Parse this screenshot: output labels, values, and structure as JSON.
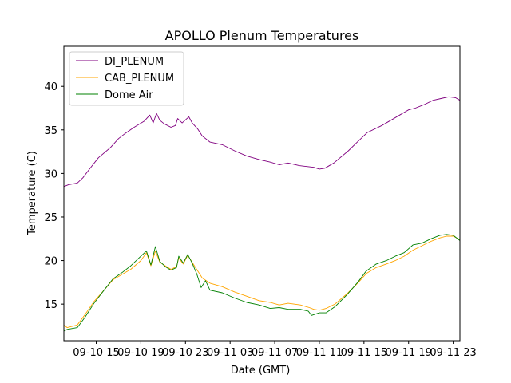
{
  "chart_data": {
    "type": "line",
    "title": "APOLLO Plenum Temperatures",
    "xlabel": "Date (GMT)",
    "ylabel": "Temperature (C)",
    "xlim": [
      12.1,
      47.6
    ],
    "ylim": [
      10.8,
      44.6
    ],
    "grid": false,
    "legend_position": "top-left",
    "x_unit": "hours since 2016-09-10 00:00 GMT",
    "x_ticks": [
      {
        "value": 15,
        "label": "09-10 15"
      },
      {
        "value": 19,
        "label": "09-10 19"
      },
      {
        "value": 23,
        "label": "09-10 23"
      },
      {
        "value": 27,
        "label": "09-11 03"
      },
      {
        "value": 31,
        "label": "09-11 07"
      },
      {
        "value": 35,
        "label": "09-11 11"
      },
      {
        "value": 39,
        "label": "09-11 15"
      },
      {
        "value": 43,
        "label": "09-11 19"
      },
      {
        "value": 47,
        "label": "09-11 23"
      }
    ],
    "y_ticks": [
      {
        "value": 15,
        "label": "15"
      },
      {
        "value": 20,
        "label": "20"
      },
      {
        "value": 25,
        "label": "25"
      },
      {
        "value": 30,
        "label": "30"
      },
      {
        "value": 35,
        "label": "35"
      },
      {
        "value": 40,
        "label": "40"
      }
    ],
    "series": [
      {
        "name": "DI_PLENUM",
        "color": "#800080",
        "points": [
          [
            12.1,
            28.5
          ],
          [
            12.5,
            28.7
          ],
          [
            13.3,
            28.9
          ],
          [
            13.8,
            29.5
          ],
          [
            14.4,
            30.5
          ],
          [
            15.2,
            31.8
          ],
          [
            16.3,
            33.0
          ],
          [
            17.0,
            34.0
          ],
          [
            17.6,
            34.6
          ],
          [
            18.4,
            35.3
          ],
          [
            19.3,
            36.0
          ],
          [
            19.8,
            36.7
          ],
          [
            20.1,
            35.8
          ],
          [
            20.4,
            36.9
          ],
          [
            20.7,
            36.1
          ],
          [
            21.1,
            35.7
          ],
          [
            21.7,
            35.3
          ],
          [
            22.1,
            35.5
          ],
          [
            22.3,
            36.3
          ],
          [
            22.7,
            35.8
          ],
          [
            23.3,
            36.5
          ],
          [
            23.6,
            35.8
          ],
          [
            24.1,
            35.1
          ],
          [
            24.5,
            34.3
          ],
          [
            25.2,
            33.6
          ],
          [
            26.3,
            33.3
          ],
          [
            27.4,
            32.6
          ],
          [
            28.5,
            32.0
          ],
          [
            29.6,
            31.6
          ],
          [
            30.6,
            31.3
          ],
          [
            31.4,
            31.0
          ],
          [
            32.2,
            31.2
          ],
          [
            33.2,
            30.9
          ],
          [
            34.5,
            30.7
          ],
          [
            35.0,
            30.5
          ],
          [
            35.5,
            30.6
          ],
          [
            36.3,
            31.2
          ],
          [
            37.6,
            32.6
          ],
          [
            38.4,
            33.6
          ],
          [
            39.3,
            34.7
          ],
          [
            40.6,
            35.5
          ],
          [
            41.4,
            36.1
          ],
          [
            42.2,
            36.7
          ],
          [
            43.0,
            37.3
          ],
          [
            43.6,
            37.5
          ],
          [
            44.4,
            37.9
          ],
          [
            45.2,
            38.4
          ],
          [
            45.9,
            38.6
          ],
          [
            46.6,
            38.8
          ],
          [
            47.2,
            38.7
          ],
          [
            47.6,
            38.4
          ]
        ]
      },
      {
        "name": "CAB_PLENUM",
        "color": "#ffa500",
        "points": [
          [
            12.1,
            12.6
          ],
          [
            12.4,
            12.3
          ],
          [
            13.3,
            12.6
          ],
          [
            14.0,
            13.8
          ],
          [
            14.8,
            15.3
          ],
          [
            15.7,
            16.6
          ],
          [
            16.5,
            17.8
          ],
          [
            17.3,
            18.4
          ],
          [
            18.1,
            19.0
          ],
          [
            19.0,
            20.0
          ],
          [
            19.5,
            20.9
          ],
          [
            19.9,
            19.4
          ],
          [
            20.3,
            21.1
          ],
          [
            20.7,
            19.8
          ],
          [
            21.2,
            19.4
          ],
          [
            21.7,
            19.0
          ],
          [
            22.2,
            19.3
          ],
          [
            22.4,
            20.3
          ],
          [
            22.8,
            19.6
          ],
          [
            23.2,
            20.6
          ],
          [
            23.6,
            19.8
          ],
          [
            24.0,
            19.0
          ],
          [
            24.5,
            18.0
          ],
          [
            25.2,
            17.4
          ],
          [
            26.3,
            17.0
          ],
          [
            27.4,
            16.4
          ],
          [
            28.5,
            15.9
          ],
          [
            29.6,
            15.4
          ],
          [
            30.6,
            15.2
          ],
          [
            31.4,
            14.9
          ],
          [
            32.2,
            15.1
          ],
          [
            33.3,
            14.9
          ],
          [
            34.1,
            14.6
          ],
          [
            34.5,
            14.4
          ],
          [
            35.0,
            14.3
          ],
          [
            35.6,
            14.5
          ],
          [
            36.4,
            15.0
          ],
          [
            37.5,
            16.2
          ],
          [
            38.5,
            17.5
          ],
          [
            39.2,
            18.5
          ],
          [
            40.1,
            19.2
          ],
          [
            41.0,
            19.6
          ],
          [
            41.8,
            20.0
          ],
          [
            42.6,
            20.5
          ],
          [
            43.4,
            21.2
          ],
          [
            44.2,
            21.7
          ],
          [
            45.0,
            22.2
          ],
          [
            45.8,
            22.6
          ],
          [
            46.4,
            22.8
          ],
          [
            47.0,
            22.8
          ],
          [
            47.6,
            22.4
          ]
        ]
      },
      {
        "name": "Dome Air",
        "color": "#008000",
        "points": [
          [
            12.1,
            11.9
          ],
          [
            12.4,
            12.1
          ],
          [
            13.3,
            12.3
          ],
          [
            14.0,
            13.5
          ],
          [
            14.8,
            15.1
          ],
          [
            15.7,
            16.6
          ],
          [
            16.5,
            17.9
          ],
          [
            17.3,
            18.6
          ],
          [
            18.1,
            19.4
          ],
          [
            19.0,
            20.5
          ],
          [
            19.5,
            21.1
          ],
          [
            19.9,
            19.5
          ],
          [
            20.3,
            21.6
          ],
          [
            20.7,
            19.9
          ],
          [
            21.2,
            19.3
          ],
          [
            21.7,
            18.9
          ],
          [
            22.2,
            19.2
          ],
          [
            22.4,
            20.5
          ],
          [
            22.8,
            19.7
          ],
          [
            23.2,
            20.7
          ],
          [
            23.6,
            19.7
          ],
          [
            24.0,
            18.5
          ],
          [
            24.4,
            16.9
          ],
          [
            24.8,
            17.7
          ],
          [
            25.2,
            16.6
          ],
          [
            26.3,
            16.3
          ],
          [
            27.4,
            15.7
          ],
          [
            28.5,
            15.2
          ],
          [
            29.6,
            14.9
          ],
          [
            30.6,
            14.5
          ],
          [
            31.4,
            14.6
          ],
          [
            32.2,
            14.4
          ],
          [
            33.3,
            14.4
          ],
          [
            34.0,
            14.2
          ],
          [
            34.3,
            13.7
          ],
          [
            35.0,
            14.0
          ],
          [
            35.6,
            14.0
          ],
          [
            36.4,
            14.7
          ],
          [
            37.5,
            16.1
          ],
          [
            38.5,
            17.6
          ],
          [
            39.2,
            18.8
          ],
          [
            40.1,
            19.6
          ],
          [
            41.0,
            20.0
          ],
          [
            41.8,
            20.5
          ],
          [
            42.6,
            20.9
          ],
          [
            43.4,
            21.8
          ],
          [
            44.2,
            22.0
          ],
          [
            45.0,
            22.5
          ],
          [
            45.8,
            22.9
          ],
          [
            46.4,
            23.0
          ],
          [
            47.0,
            22.9
          ],
          [
            47.6,
            22.3
          ]
        ]
      }
    ]
  }
}
